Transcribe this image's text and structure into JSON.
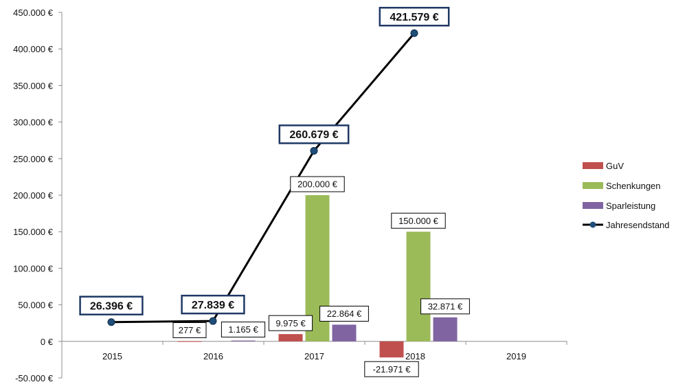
{
  "chart_data": {
    "type": "bar",
    "title": "",
    "xlabel": "",
    "ylabel": "",
    "ylim": [
      -50000,
      450000
    ],
    "y_ticks": [
      {
        "value": -50000,
        "label": "-50.000 €"
      },
      {
        "value": 0,
        "label": "0 €"
      },
      {
        "value": 50000,
        "label": "50.000 €"
      },
      {
        "value": 100000,
        "label": "100.000 €"
      },
      {
        "value": 150000,
        "label": "150.000 €"
      },
      {
        "value": 200000,
        "label": "200.000 €"
      },
      {
        "value": 250000,
        "label": "250.000 €"
      },
      {
        "value": 300000,
        "label": "300.000 €"
      },
      {
        "value": 350000,
        "label": "350.000 €"
      },
      {
        "value": 400000,
        "label": "400.000 €"
      },
      {
        "value": 450000,
        "label": "450.000 €"
      }
    ],
    "categories": [
      "2015",
      "2016",
      "2017",
      "2018",
      "2019"
    ],
    "series": [
      {
        "name": "GuV",
        "type": "bar",
        "color": "#c0504d",
        "values": [
          null,
          277,
          9975,
          -21971,
          null
        ],
        "labels": [
          null,
          "277 €",
          "9.975 €",
          "-21.971 €",
          null
        ]
      },
      {
        "name": "Schenkungen",
        "type": "bar",
        "color": "#9bbb59",
        "values": [
          null,
          null,
          200000,
          150000,
          null
        ],
        "labels": [
          null,
          null,
          "200.000 €",
          "150.000 €",
          null
        ]
      },
      {
        "name": "Sparleistung",
        "type": "bar",
        "color": "#8064a2",
        "values": [
          null,
          1165,
          22864,
          32871,
          null
        ],
        "labels": [
          null,
          "1.165 €",
          "22.864 €",
          "32.871 €",
          null
        ]
      },
      {
        "name": "Jahresendstand",
        "type": "line",
        "color": "#000000",
        "marker_color": "#1f4e79",
        "values": [
          26396,
          27839,
          260679,
          421579,
          null
        ],
        "labels": [
          "26.396 €",
          "27.839 €",
          "260.679 €",
          "421.579 €",
          null
        ]
      }
    ],
    "legend": {
      "position": "right"
    },
    "grid": false
  }
}
